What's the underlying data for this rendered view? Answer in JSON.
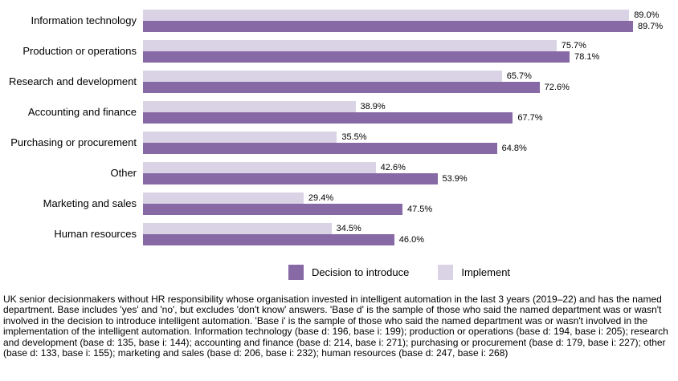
{
  "chart_data": {
    "type": "bar",
    "orientation": "horizontal",
    "title": "",
    "xlabel": "",
    "ylabel": "",
    "xlim": [
      0,
      100
    ],
    "value_suffix": "%",
    "grid": false,
    "legend_position": "bottom",
    "bar_order_top_to_bottom_within_group": [
      "Implement",
      "Decision to introduce"
    ],
    "categories": [
      "Information technology",
      "Production or operations",
      "Research and development",
      "Accounting and finance",
      "Purchasing or procurement",
      "Other",
      "Marketing and sales",
      "Human resources"
    ],
    "series": [
      {
        "name": "Decision to introduce",
        "color": "#8769A5",
        "values": [
          89.7,
          78.1,
          72.6,
          67.7,
          64.8,
          53.9,
          47.5,
          46.0
        ]
      },
      {
        "name": "Implement",
        "color": "#D9D3E5",
        "values": [
          89.0,
          75.7,
          65.7,
          38.9,
          35.5,
          42.6,
          29.4,
          34.5
        ]
      }
    ]
  },
  "legend": {
    "decision_label": "Decision to introduce",
    "implement_label": "Implement"
  },
  "footnote": {
    "text": "UK senior decisionmakers without HR responsibility whose organisation invested in intelligent automation in the last 3 years (2019–22) and has the named department. Base includes 'yes' and 'no', but excludes 'don't know' answers. 'Base d' is the sample of those who said the named department was or wasn't involved in the decision to introduce intelligent automation. 'Base i' is the sample of those who said the named department was or wasn't involved in the implementation of the intelligent automation. Information technology (base d: 196, base i: 199); production or operations (base d: 194, base i: 205); research and development (base d: 135, base i: 144); accounting and finance (base d: 214, base i: 271); purchasing or procurement (base d: 179, base i: 227); other (base d: 133, base i: 155); marketing and sales (base d: 206, base i: 232); human resources (base d: 247, base i: 268)"
  }
}
